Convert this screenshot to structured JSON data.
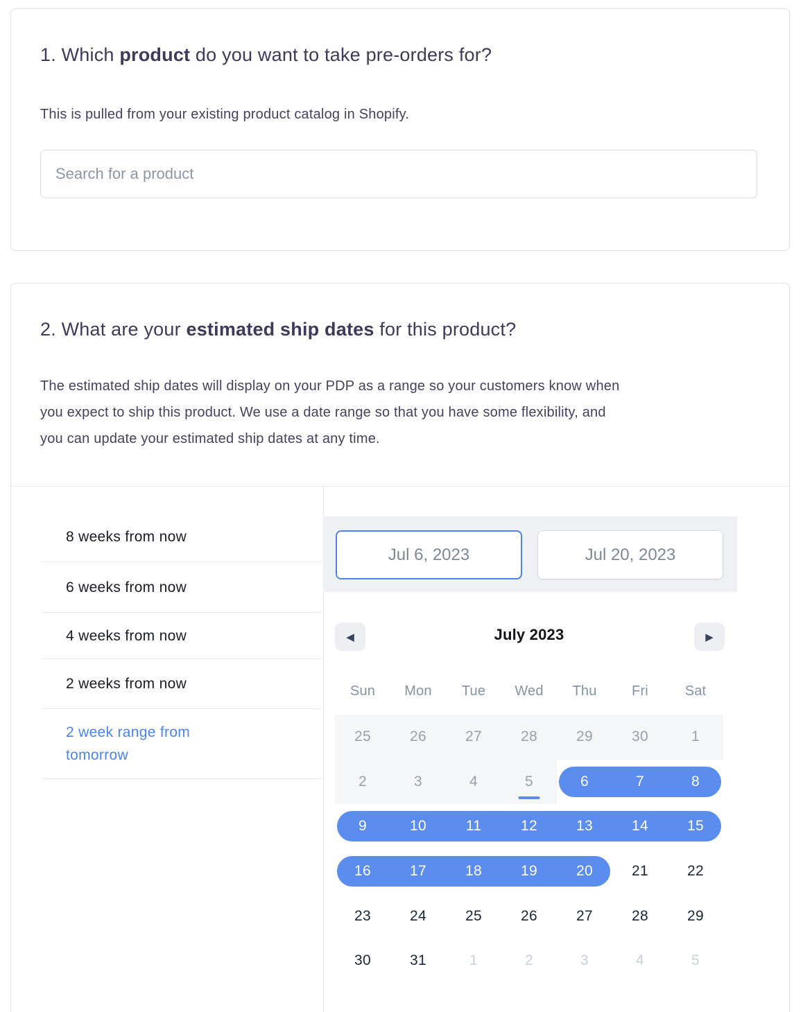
{
  "colors": {
    "accent": "#5b8def",
    "active_link": "#4d84ee",
    "past_bg": "#f5f6f8",
    "heading": "#3e3a5c"
  },
  "section1": {
    "title_prefix": "1. Which ",
    "title_bold": "product",
    "title_suffix": " do you want to take pre-orders for?",
    "description": "This is pulled from your existing product catalog in Shopify.",
    "search_placeholder": "Search for a product"
  },
  "section2": {
    "title_prefix": "2. What are your ",
    "title_bold": "estimated ship dates",
    "title_suffix": " for this product?",
    "description_lines": {
      "line1": "The estimated ship dates will display on your PDP as a range so your customers know when",
      "line2": "you expect to ship this product. We use a date range so that you have some flexibility, and",
      "line3": "you can update your estimated ship dates at any time."
    },
    "presets": [
      {
        "label": "8 weeks from now",
        "active": false
      },
      {
        "label": "6 weeks from now",
        "active": false
      },
      {
        "label": "4 weeks from now",
        "active": false
      },
      {
        "label": "2 weeks from now",
        "active": false
      },
      {
        "label": "2 week range from tomorrow",
        "active": true
      }
    ],
    "date_range": {
      "start_value": "Jul 6, 2023",
      "end_value": "Jul 20, 2023"
    },
    "calendar": {
      "month_label": "July 2023",
      "prev_icon": "◀",
      "next_icon": "▶",
      "weekday_labels": [
        "Sun",
        "Mon",
        "Tue",
        "Wed",
        "Thu",
        "Fri",
        "Sat"
      ],
      "weeks": [
        [
          {
            "label": "25",
            "state": "disabled"
          },
          {
            "label": "26",
            "state": "disabled"
          },
          {
            "label": "27",
            "state": "disabled"
          },
          {
            "label": "28",
            "state": "disabled"
          },
          {
            "label": "29",
            "state": "disabled"
          },
          {
            "label": "30",
            "state": "disabled"
          },
          {
            "label": "1",
            "state": "disabled"
          }
        ],
        [
          {
            "label": "2",
            "state": "disabled"
          },
          {
            "label": "3",
            "state": "disabled"
          },
          {
            "label": "4",
            "state": "disabled"
          },
          {
            "label": "5",
            "state": "today"
          },
          {
            "label": "6",
            "state": "selected"
          },
          {
            "label": "7",
            "state": "selected"
          },
          {
            "label": "8",
            "state": "selected"
          }
        ],
        [
          {
            "label": "9",
            "state": "selected"
          },
          {
            "label": "10",
            "state": "selected"
          },
          {
            "label": "11",
            "state": "selected"
          },
          {
            "label": "12",
            "state": "selected"
          },
          {
            "label": "13",
            "state": "selected"
          },
          {
            "label": "14",
            "state": "selected"
          },
          {
            "label": "15",
            "state": "selected"
          }
        ],
        [
          {
            "label": "16",
            "state": "selected"
          },
          {
            "label": "17",
            "state": "selected"
          },
          {
            "label": "18",
            "state": "selected"
          },
          {
            "label": "19",
            "state": "selected"
          },
          {
            "label": "20",
            "state": "selected"
          },
          {
            "label": "21",
            "state": "normal"
          },
          {
            "label": "22",
            "state": "normal"
          }
        ],
        [
          {
            "label": "23",
            "state": "normal"
          },
          {
            "label": "24",
            "state": "normal"
          },
          {
            "label": "25",
            "state": "normal"
          },
          {
            "label": "26",
            "state": "normal"
          },
          {
            "label": "27",
            "state": "normal"
          },
          {
            "label": "28",
            "state": "normal"
          },
          {
            "label": "29",
            "state": "normal"
          }
        ],
        [
          {
            "label": "30",
            "state": "normal"
          },
          {
            "label": "31",
            "state": "normal"
          },
          {
            "label": "1",
            "state": "adjacent"
          },
          {
            "label": "2",
            "state": "adjacent"
          },
          {
            "label": "3",
            "state": "adjacent"
          },
          {
            "label": "4",
            "state": "adjacent"
          },
          {
            "label": "5",
            "state": "adjacent"
          }
        ]
      ]
    }
  }
}
